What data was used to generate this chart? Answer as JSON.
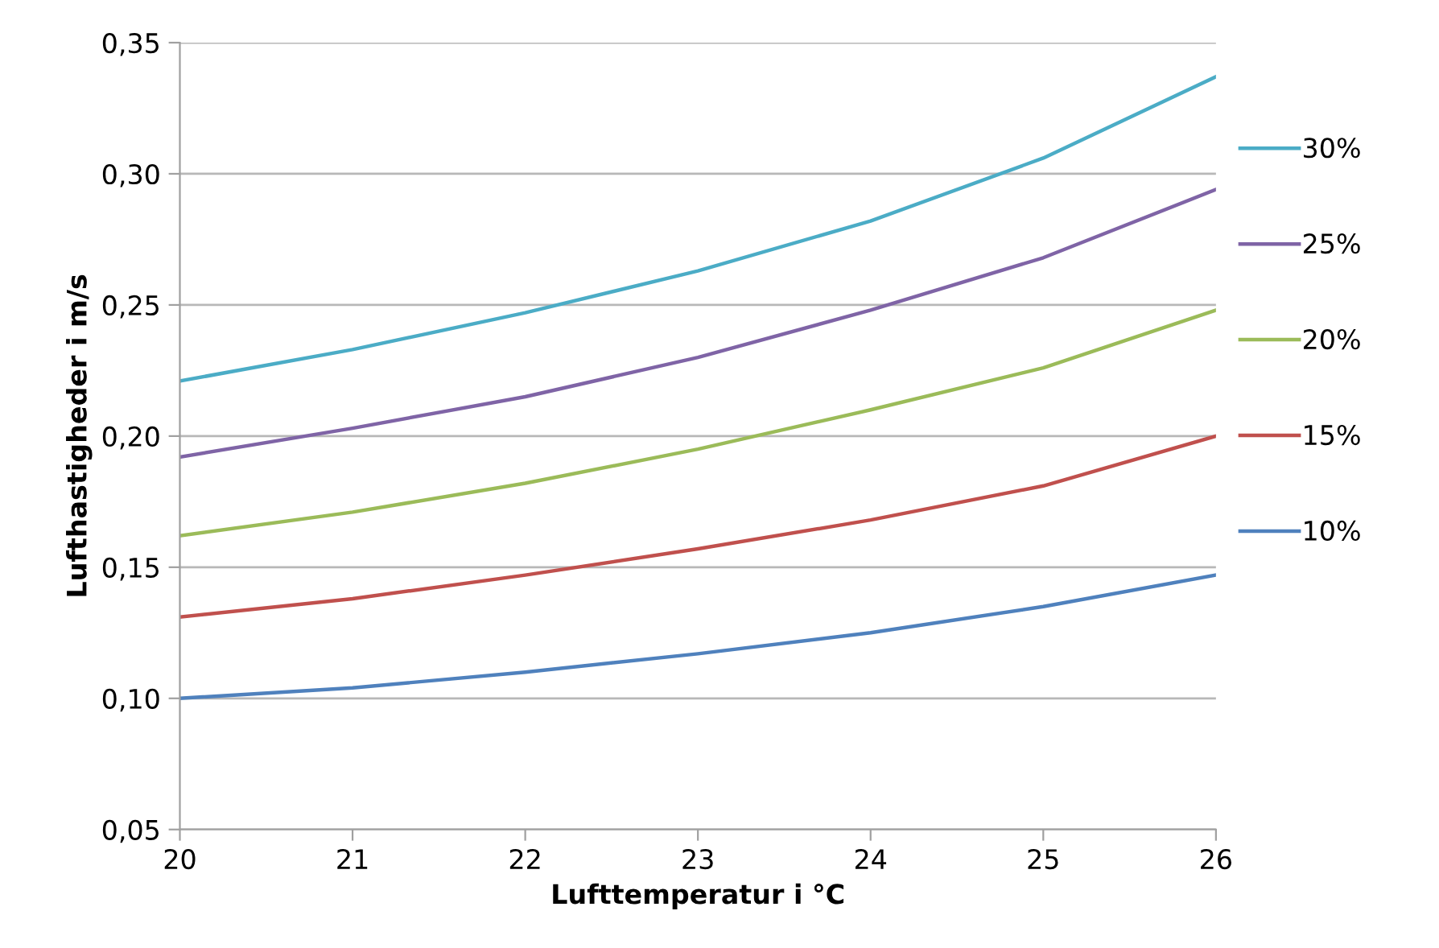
{
  "chart_data": {
    "type": "line",
    "xlabel": "Lufttemperatur i °C",
    "ylabel": "Lufthastigheder i m/s",
    "x": [
      20,
      21,
      22,
      23,
      24,
      25,
      26
    ],
    "series": [
      {
        "name": "30%",
        "color": "#4bacc6",
        "values": [
          0.221,
          0.233,
          0.247,
          0.263,
          0.282,
          0.306,
          0.337
        ]
      },
      {
        "name": "25%",
        "color": "#7f64a6",
        "values": [
          0.192,
          0.203,
          0.215,
          0.23,
          0.248,
          0.268,
          0.294
        ]
      },
      {
        "name": "20%",
        "color": "#9bbb59",
        "values": [
          0.162,
          0.171,
          0.182,
          0.195,
          0.21,
          0.226,
          0.248
        ]
      },
      {
        "name": "15%",
        "color": "#c0504d",
        "values": [
          0.131,
          0.138,
          0.147,
          0.157,
          0.168,
          0.181,
          0.2
        ]
      },
      {
        "name": "10%",
        "color": "#4f81bd",
        "values": [
          0.1,
          0.104,
          0.11,
          0.117,
          0.125,
          0.135,
          0.147
        ]
      }
    ],
    "xlim": [
      20,
      26
    ],
    "xticks": [
      20,
      21,
      22,
      23,
      24,
      25,
      26
    ],
    "ylim": [
      0.05,
      0.35
    ],
    "yticks": [
      {
        "value": 0.05,
        "label": "0,05"
      },
      {
        "value": 0.1,
        "label": "0,10"
      },
      {
        "value": 0.15,
        "label": "0,15"
      },
      {
        "value": 0.2,
        "label": "0,20"
      },
      {
        "value": 0.25,
        "label": "0,25"
      },
      {
        "value": 0.3,
        "label": "0,30"
      },
      {
        "value": 0.35,
        "label": "0,35"
      }
    ],
    "grid": "y",
    "legend": "right",
    "marker": "none",
    "line_style": "solid"
  }
}
